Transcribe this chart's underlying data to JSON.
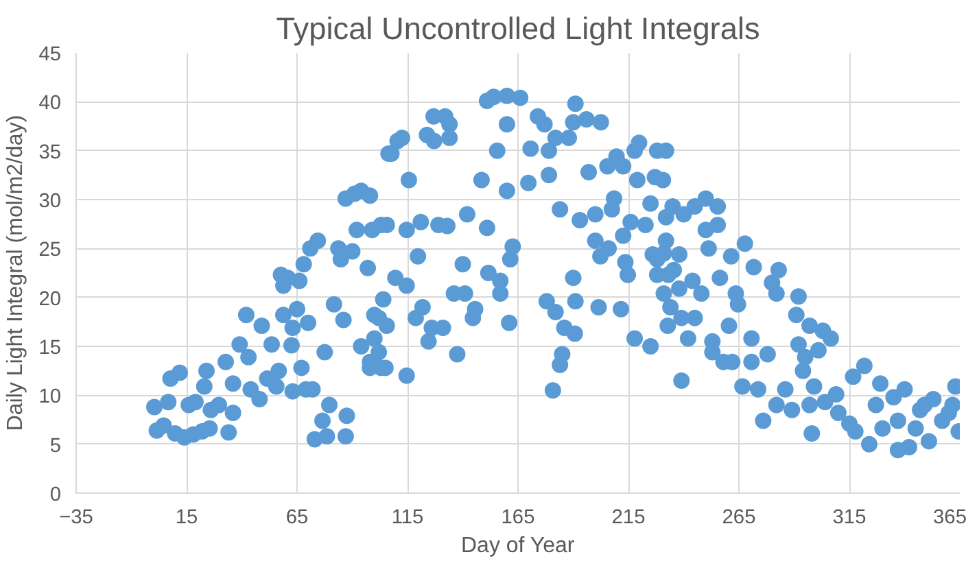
{
  "chart_data": {
    "type": "scatter",
    "title": "Typical Uncontrolled Light Integrals",
    "xlabel": "Day of Year",
    "ylabel": "Daily Light Integral (mol/m2/day)",
    "xlim": [
      -35,
      365
    ],
    "xticks": [
      -35,
      15,
      65,
      115,
      165,
      215,
      265,
      315,
      365
    ],
    "ylim": [
      0,
      45
    ],
    "yticks": [
      0,
      5,
      10,
      15,
      20,
      25,
      30,
      35,
      40,
      45
    ],
    "grid": true,
    "marker": "circle",
    "series": [
      {
        "color": "#5b9bd5",
        "x": [
          0.4,
          1.5,
          4.6,
          6.7,
          7.7,
          11.9,
          9.8,
          14,
          16,
          18,
          19,
          22,
          24,
          25.4,
          26,
          23,
          29.6,
          32.7,
          34,
          36,
          36,
          39,
          42,
          43,
          44,
          48,
          49,
          53.5,
          51.5,
          56.7,
          55.6,
          57.7,
          60.8,
          58.8,
          66,
          68,
          71,
          74.4,
          58.8,
          65,
          63,
          70,
          62.5,
          67,
          63,
          69,
          72,
          77.5,
          73,
          76.5,
          79.6,
          78.5,
          87,
          87.5,
          81.7,
          86,
          83.7,
          84.8,
          90,
          87,
          91,
          94,
          98,
          92,
          99,
          105.6,
          97,
          94,
          98,
          100,
          102,
          102,
          105,
          107.7,
          103,
          114.6,
          121,
          129,
          133,
          142,
          151,
          106.4,
          110.5,
          112.5,
          115.6,
          123.8,
          126.8,
          132,
          134,
          134,
          127,
          151,
          154,
          160,
          166,
          160,
          155.6,
          148.5,
          160,
          169.7,
          174,
          177,
          170.7,
          179,
          182,
          188,
          179,
          191,
          190,
          196,
          202.5,
          184,
          193,
          200,
          197,
          205.5,
          209.6,
          212.6,
          219.8,
          217.8,
          219,
          228,
          232,
          227,
          208.5,
          207.5,
          216,
          212.6,
          222.7,
          225,
          232,
          200,
          202.3,
          206,
          213.6,
          214.7,
          228,
          231,
          233,
          190,
          119.7,
          140,
          151.6,
          157,
          161.5,
          162.6,
          109.5,
          114.6,
          104,
          100,
          105.6,
          118.7,
          121.8,
          126,
          131,
          124.5,
          136,
          141,
          145.6,
          144.6,
          157,
          161,
          137.5,
          114.6,
          103,
          98,
          178,
          182,
          186,
          190.7,
          185,
          184,
          180.8,
          191,
          201.5,
          211.6,
          217.8,
          225,
          230.6,
          235,
          240,
          245,
          250,
          255.4,
          255.4,
          250,
          251.3,
          232,
          226,
          238,
          235.5,
          228,
          244,
          248,
          238,
          231,
          234,
          256.4,
          261.5,
          267.7,
          271.7,
          263.6,
          264.6,
          245,
          239,
          232.8,
          242,
          260.5,
          253,
          253,
          258,
          262,
          239,
          270.7,
          278,
          270.7,
          266.6,
          273.7,
          276,
          283,
          280,
          282,
          292,
          291,
          297,
          303,
          306.6,
          292,
          295,
          301,
          294,
          299,
          286,
          282,
          289,
          298,
          297,
          304,
          309,
          310,
          315,
          317.7,
          316.7,
          321.8,
          324,
          329,
          327,
          330,
          335,
          340,
          337,
          337,
          342,
          347,
          349,
          353,
          351,
          357,
          360,
          363,
          364.5,
          361.7,
          345
        ],
        "values": [
          8.8,
          6.4,
          6.9,
          9.3,
          11.7,
          12.3,
          6.1,
          5.7,
          9,
          6,
          9.3,
          6.3,
          12.5,
          6.6,
          8.5,
          10.9,
          9,
          13.4,
          6.2,
          8.2,
          11.2,
          15.2,
          18.2,
          13.9,
          10.6,
          9.6,
          17.1,
          15.2,
          11.7,
          12.5,
          10.9,
          22.3,
          22,
          21.2,
          21.7,
          23.4,
          25,
          25.8,
          18.2,
          18.8,
          16.9,
          17.4,
          15.1,
          12.8,
          10.4,
          10.6,
          10.6,
          14.4,
          5.5,
          7.4,
          9,
          5.8,
          5.8,
          7.9,
          19.3,
          17.7,
          25,
          23.9,
          24.7,
          30.1,
          30.6,
          30.9,
          30.4,
          26.9,
          26.9,
          27.4,
          23,
          15,
          13.4,
          15.8,
          17.9,
          14.4,
          12.8,
          34.7,
          27.4,
          26.9,
          27.7,
          27.4,
          27.3,
          28.5,
          27.1,
          34.7,
          36,
          36.3,
          32,
          36.6,
          38.5,
          38.5,
          37.7,
          36.3,
          36,
          40.1,
          40.5,
          40.6,
          40.4,
          37.7,
          35,
          32,
          30.9,
          31.7,
          38.5,
          37.7,
          35.2,
          35,
          36.3,
          36.3,
          32.5,
          39.8,
          37.9,
          38.2,
          37.9,
          29,
          27.9,
          28.5,
          32.8,
          33.4,
          34.4,
          33.4,
          35.8,
          35,
          32,
          35,
          35,
          32.3,
          30.1,
          29,
          27.7,
          26.3,
          27.4,
          29.6,
          28.2,
          25.8,
          24.2,
          25,
          23.6,
          22.3,
          23.9,
          24.5,
          22.3,
          22,
          24.2,
          23.4,
          22.5,
          21.7,
          23.9,
          25.2,
          22,
          21.2,
          19.8,
          18.2,
          17.1,
          17.9,
          19,
          16.9,
          16.9,
          15.5,
          20.4,
          20.4,
          18.8,
          17.9,
          20.4,
          17.4,
          14.2,
          12,
          12.8,
          12.8,
          19.6,
          18.5,
          16.9,
          16.3,
          14.2,
          13.1,
          10.5,
          19.6,
          19,
          18.8,
          15.8,
          15,
          32,
          29.3,
          28.5,
          29.3,
          30.1,
          29.3,
          27.4,
          26.9,
          25,
          25.8,
          24.4,
          24.4,
          22.8,
          22.3,
          21.7,
          20.4,
          20.9,
          20.4,
          19,
          22,
          24.2,
          25.5,
          23.1,
          20.4,
          19.3,
          17.9,
          17.9,
          17.1,
          15.8,
          17.1,
          15.5,
          14.4,
          13.4,
          13.4,
          11.5,
          15.8,
          14.2,
          13.4,
          10.9,
          10.6,
          7.4,
          22.8,
          21.5,
          20.4,
          20.1,
          18.2,
          17.1,
          16.6,
          15.8,
          15.2,
          13.9,
          14.6,
          12.5,
          10.9,
          10.6,
          9,
          8.5,
          6.1,
          9,
          9.3,
          10.1,
          8.2,
          7.1,
          6.3,
          11.9,
          13,
          5,
          11.2,
          9,
          6.6,
          9.8,
          10.6,
          7.4,
          4.4,
          4.7,
          8.5,
          9,
          9.6,
          5.3,
          7.4,
          8.2,
          10.9,
          6.3,
          9,
          6.6
        ]
      }
    ]
  }
}
